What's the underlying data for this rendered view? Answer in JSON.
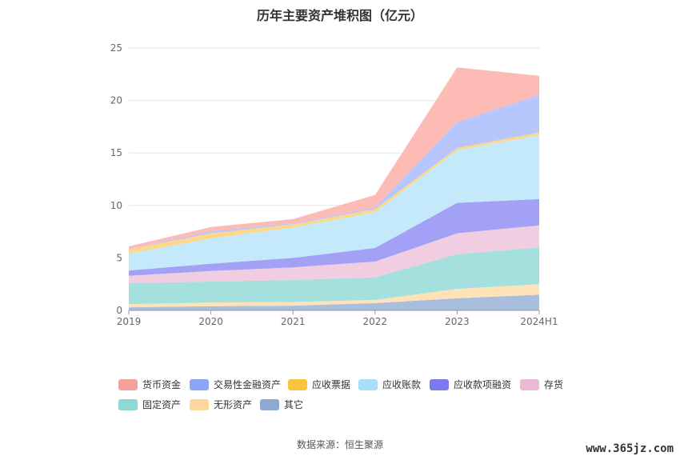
{
  "chart_data": {
    "type": "area",
    "title": "历年主要资产堆积图（亿元）",
    "stacked": true,
    "categories": [
      "2019",
      "2020",
      "2021",
      "2022",
      "2023",
      "2024H1"
    ],
    "ylim": [
      0,
      25
    ],
    "yticks": [
      0,
      5,
      10,
      15,
      20,
      25
    ],
    "grid": true,
    "legend_position": "bottom",
    "series": [
      {
        "name": "其它",
        "color": "#a9bddf",
        "values": [
          0.3,
          0.4,
          0.45,
          0.7,
          1.15,
          1.5
        ]
      },
      {
        "name": "无形资产",
        "color": "#fde3b7",
        "values": [
          0.3,
          0.35,
          0.35,
          0.3,
          0.9,
          1.0
        ]
      },
      {
        "name": "固定资产",
        "color": "#a4e0dd",
        "values": [
          2.0,
          2.0,
          2.1,
          2.15,
          3.3,
          3.5
        ]
      },
      {
        "name": "存货",
        "color": "#f0cde0",
        "values": [
          0.7,
          1.0,
          1.2,
          1.5,
          2.0,
          2.1
        ]
      },
      {
        "name": "应收款项融资",
        "color": "#a3a1f5",
        "values": [
          0.5,
          0.7,
          0.9,
          1.3,
          2.9,
          2.5
        ]
      },
      {
        "name": "应收账款",
        "color": "#c4e9fb",
        "values": [
          1.6,
          2.4,
          2.9,
          3.4,
          5.0,
          6.1
        ]
      },
      {
        "name": "应收票据",
        "color": "#fdd889",
        "values": [
          0.4,
          0.5,
          0.3,
          0.3,
          0.2,
          0.25
        ]
      },
      {
        "name": "交易性金融资产",
        "color": "#b7c6fc",
        "values": [
          0.0,
          0.2,
          0.1,
          0.15,
          2.5,
          3.6
        ]
      },
      {
        "name": "货币资金",
        "color": "#fcbcb5",
        "values": [
          0.3,
          0.4,
          0.4,
          1.2,
          5.2,
          1.8
        ]
      }
    ]
  },
  "legend": {
    "items": [
      {
        "label": "货币资金",
        "color": "#f5a29c"
      },
      {
        "label": "交易性金融资产",
        "color": "#8aa6f7"
      },
      {
        "label": "应收票据",
        "color": "#fbc43f"
      },
      {
        "label": "应收账款",
        "color": "#a7dffb"
      },
      {
        "label": "应收款项融资",
        "color": "#7b7af0"
      },
      {
        "label": "存货",
        "color": "#ebb9d5"
      },
      {
        "label": "固定资产",
        "color": "#8ed8d5"
      },
      {
        "label": "无形资产",
        "color": "#fed79e"
      },
      {
        "label": "其它",
        "color": "#8fa9d5"
      }
    ]
  },
  "source": "数据来源：恒生聚源",
  "watermark": "www.365jz.com"
}
